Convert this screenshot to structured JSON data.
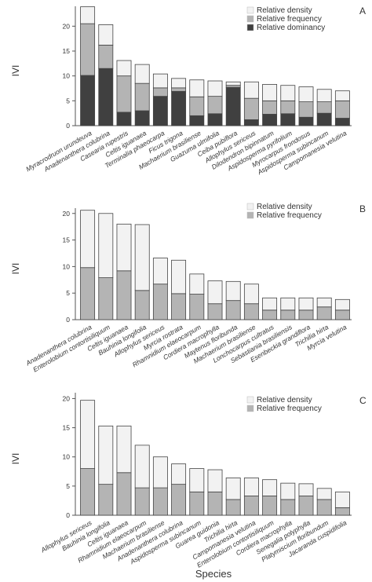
{
  "figure": {
    "x_axis_title": "Species"
  },
  "chart_data": [
    {
      "type": "bar",
      "stacked": true,
      "panel_label": "A",
      "ylabel": "IVI",
      "ylim": [
        0,
        24
      ],
      "yticks": [
        0,
        5,
        10,
        15,
        20
      ],
      "legend_position": "top-right",
      "categories": [
        "Myracrodruon urundeuva",
        "Anadenanthera colubrina",
        "Casearia rupestris",
        "Celtis iguanaea",
        "Terminalia phaeocarpa",
        "Ficus trigona",
        "Machaerium brasiliense",
        "Guazuma ulmifolia",
        "Ceiba pubiflora",
        "Allophylus sericeus",
        "Dilodendron bipinnatum",
        "Aspidosperma pyrifolium",
        "Myrocarpus frondosus",
        "Aspidosperma subincanum",
        "Campomanesia velutina"
      ],
      "series": [
        {
          "name": "Relative dominancy",
          "color": "#404040",
          "values": [
            10.1,
            11.5,
            2.7,
            3.0,
            5.9,
            6.9,
            2.0,
            2.4,
            7.7,
            1.2,
            2.3,
            2.4,
            1.7,
            2.5,
            1.5
          ]
        },
        {
          "name": "Relative frequency",
          "color": "#b4b4b4",
          "values": [
            10.4,
            4.7,
            7.3,
            5.5,
            1.7,
            0.7,
            3.8,
            3.5,
            0.4,
            4.3,
            2.7,
            2.6,
            3.1,
            2.3,
            3.5
          ]
        },
        {
          "name": "Relative density",
          "color": "#f2f2f2",
          "values": [
            3.4,
            4.1,
            3.1,
            3.8,
            2.8,
            1.9,
            3.4,
            3.1,
            0.7,
            3.3,
            3.3,
            3.1,
            3.0,
            2.5,
            2.0
          ]
        }
      ]
    },
    {
      "type": "bar",
      "stacked": true,
      "panel_label": "B",
      "ylabel": "IVI",
      "ylim": [
        0,
        21
      ],
      "yticks": [
        0,
        5,
        10,
        15,
        20
      ],
      "legend_position": "top-right",
      "categories": [
        "Anadenanthera colubrina",
        "Enterolobium contortisiliquum",
        "Celtis iguanaea",
        "Bauhinia longifolia",
        "Allophylus sericeus",
        "Myrcia rostrata",
        "Rhamnidium elaeocarpum",
        "Cordiera macrophylla",
        "Maytenus floribunda",
        "Machaerium brasiliense",
        "Lonchocarpus cultratus",
        "Sebastiania brasiliensis",
        "Esenbeckia grandiflora",
        "Trichilia hirta",
        "Myrcia velutina"
      ],
      "series": [
        {
          "name": "Relative frequency",
          "color": "#b4b4b4",
          "values": [
            9.8,
            7.9,
            9.2,
            5.5,
            6.7,
            4.9,
            4.8,
            3.0,
            3.6,
            3.0,
            1.8,
            1.8,
            1.8,
            2.4,
            1.8
          ]
        },
        {
          "name": "Relative density",
          "color": "#f2f2f2",
          "values": [
            10.8,
            12.1,
            8.8,
            12.4,
            4.9,
            6.3,
            3.8,
            4.3,
            3.6,
            3.7,
            2.3,
            2.3,
            2.3,
            1.7,
            2.0
          ]
        }
      ]
    },
    {
      "type": "bar",
      "stacked": true,
      "panel_label": "C",
      "ylabel": "IVI",
      "ylim": [
        0,
        21
      ],
      "yticks": [
        0,
        5,
        10,
        15,
        20
      ],
      "legend_position": "top-right",
      "categories": [
        "Allophylus sericeus",
        "Bauhinia longifolia",
        "Celtis iguanaea",
        "Rhamnidium elaeocarpum",
        "Machaerium brasiliense",
        "Anadenanthera colubrina",
        "Aspidosperma subincanum",
        "Guarea guidonia",
        "Trichilia hirta",
        "Campomanesia velutina",
        "Enterolobium contortisiliquum",
        "Cordiera macrophylla",
        "Senegalia polyphylla",
        "Platymiscium floribundum",
        "Jacaranda cuspidifolia"
      ],
      "series": [
        {
          "name": "Relative frequency",
          "color": "#b4b4b4",
          "values": [
            8.0,
            5.3,
            7.3,
            4.7,
            4.7,
            5.3,
            4.0,
            4.0,
            2.7,
            3.3,
            3.3,
            2.7,
            3.3,
            2.7,
            1.3
          ]
        },
        {
          "name": "Relative density",
          "color": "#f2f2f2",
          "values": [
            11.7,
            10.0,
            8.0,
            7.3,
            5.3,
            3.5,
            4.0,
            3.8,
            3.7,
            3.1,
            2.8,
            2.8,
            2.1,
            1.9,
            2.7
          ]
        }
      ]
    }
  ]
}
